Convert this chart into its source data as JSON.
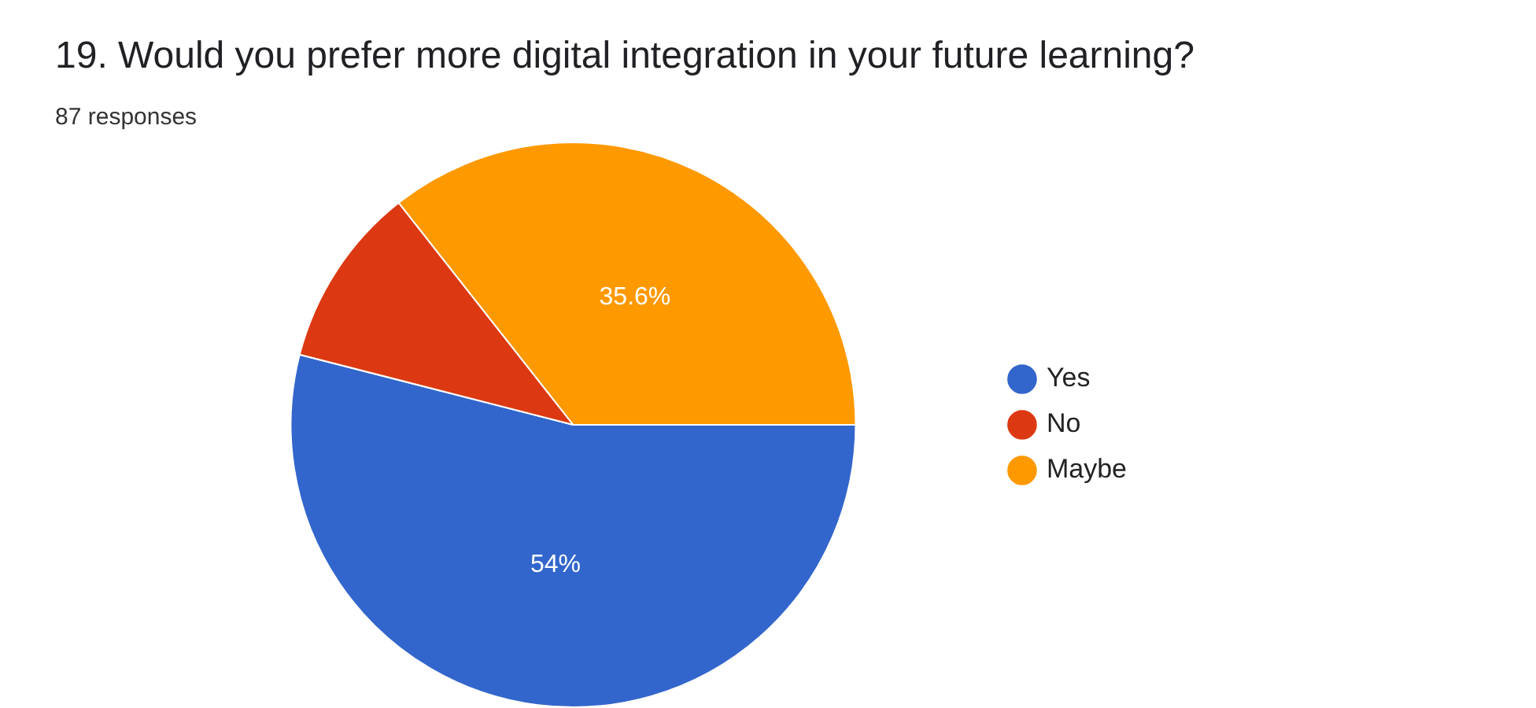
{
  "chart_data": {
    "type": "pie",
    "title": "19. Would you prefer more digital integration in your future learning?",
    "subtitle": "87 responses",
    "categories": [
      "Yes",
      "No",
      "Maybe"
    ],
    "values": [
      54,
      10.4,
      35.6
    ],
    "colors": [
      "#3366cc",
      "#dc3912",
      "#ff9900"
    ],
    "value_labels": [
      "54%",
      null,
      "35.6%"
    ],
    "legend": "right"
  }
}
